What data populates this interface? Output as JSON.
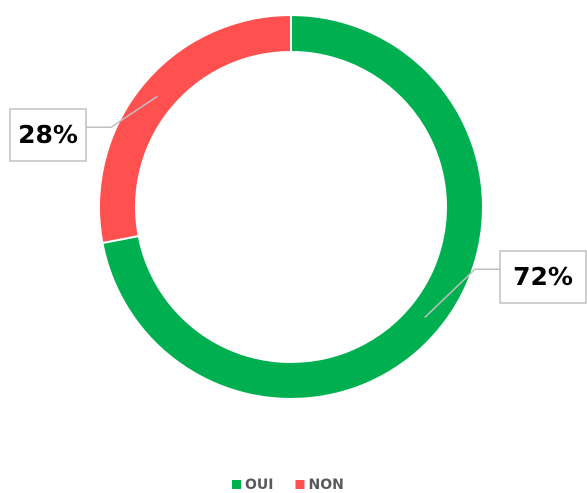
{
  "chart_data": {
    "type": "donut",
    "categories": [
      "OUI",
      "NON"
    ],
    "values": [
      72,
      28
    ],
    "value_labels": [
      "72%",
      "28%"
    ],
    "colors": [
      "#00b050",
      "#ff5050"
    ],
    "legend": "bottom"
  }
}
